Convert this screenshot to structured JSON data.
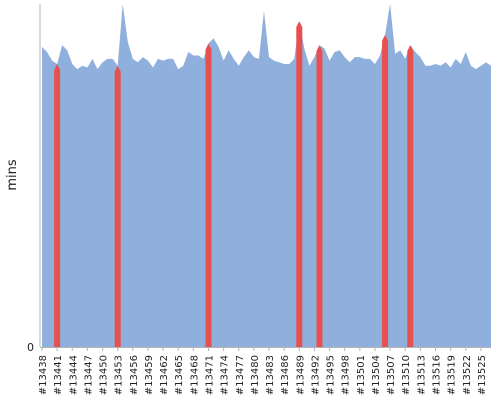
{
  "chart_data": {
    "type": "area",
    "title": "",
    "xlabel": "",
    "ylabel": "mins",
    "y_ticks": [
      0
    ],
    "ylim": [
      0,
      100
    ],
    "x": [
      13438,
      13439,
      13440,
      13441,
      13442,
      13443,
      13444,
      13445,
      13446,
      13447,
      13448,
      13449,
      13450,
      13451,
      13452,
      13453,
      13454,
      13455,
      13456,
      13457,
      13458,
      13459,
      13460,
      13461,
      13462,
      13463,
      13464,
      13465,
      13466,
      13467,
      13468,
      13469,
      13470,
      13471,
      13472,
      13473,
      13474,
      13475,
      13476,
      13477,
      13478,
      13479,
      13480,
      13481,
      13482,
      13483,
      13484,
      13485,
      13486,
      13487,
      13488,
      13489,
      13490,
      13491,
      13492,
      13493,
      13494,
      13495,
      13496,
      13497,
      13498,
      13499,
      13500,
      13501,
      13502,
      13503,
      13504,
      13505,
      13506,
      13507,
      13508,
      13509,
      13510,
      13511,
      13512,
      13513,
      13514,
      13515,
      13516,
      13517,
      13518,
      13519,
      13520,
      13521,
      13522,
      13523,
      13524,
      13525,
      13526,
      13527
    ],
    "x_tick_labels": [
      "#13438",
      "#13441",
      "#13444",
      "#13447",
      "#13450",
      "#13453",
      "#13456",
      "#13459",
      "#13462",
      "#13465",
      "#13468",
      "#13471",
      "#13474",
      "#13477",
      "#13480",
      "#13483",
      "#13486",
      "#13489",
      "#13492",
      "#13495",
      "#13498",
      "#13501",
      "#13504",
      "#13507",
      "#13510",
      "#13513",
      "#13516",
      "#13519",
      "#13522",
      "#13525"
    ],
    "values": [
      87.5,
      86.0,
      83.5,
      82.5,
      88.0,
      86.5,
      82.5,
      81.0,
      82.0,
      81.5,
      84.0,
      81.0,
      83.0,
      84.0,
      84.0,
      82.0,
      100.0,
      89.0,
      84.0,
      83.0,
      84.5,
      83.5,
      81.5,
      84.0,
      83.5,
      84.0,
      84.0,
      81.0,
      82.0,
      86.0,
      85.0,
      85.0,
      84.0,
      88.5,
      90.0,
      87.5,
      83.5,
      86.5,
      84.0,
      82.0,
      84.5,
      86.5,
      84.5,
      84.0,
      98.0,
      84.5,
      83.5,
      83.0,
      82.5,
      82.5,
      84.0,
      95.0,
      87.0,
      82.0,
      84.5,
      88.0,
      87.0,
      83.5,
      86.0,
      86.5,
      84.5,
      83.0,
      84.5,
      84.5,
      84.0,
      84.0,
      82.5,
      85.0,
      91.0,
      100.0,
      85.5,
      86.5,
      84.0,
      88.0,
      86.0,
      84.5,
      82.0,
      82.0,
      82.5,
      82.0,
      83.0,
      81.5,
      84.0,
      82.5,
      86.0,
      82.0,
      81.0,
      82.0,
      83.0,
      82.0
    ],
    "highlighted_x": [
      13441,
      13453,
      13471,
      13489,
      13493,
      13506,
      13511
    ],
    "colors": {
      "area": "#8fb0dc",
      "highlight": "#e8504f",
      "axis": "#b5b5b5",
      "text": "#222222"
    },
    "grid": false,
    "legend": "none"
  }
}
